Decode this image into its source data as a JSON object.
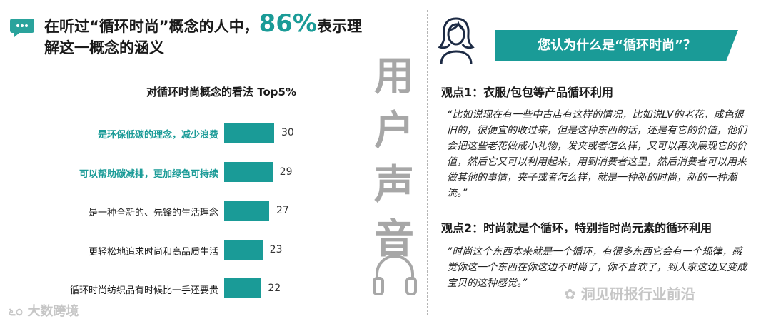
{
  "headline": {
    "prefix": "在听过“循环时尚”概念的人中，",
    "highlight": "86%",
    "suffix": "表示理解这一概念的涵义"
  },
  "chart_data": {
    "type": "bar",
    "title": "对循环时尚概念的看法 Top5%",
    "categories": [
      "是环保低碳的理念，减少浪费",
      "可以帮助碳减排，更加绿色可持续",
      "是一种全新的、先锋的生活理念",
      "更轻松地追求时尚和高品质生活",
      "循环时尚纺织品有时候比一手还要贵"
    ],
    "values": [
      30,
      29,
      27,
      23,
      22
    ],
    "highlighted": [
      true,
      true,
      false,
      false,
      false
    ],
    "xlim": [
      0,
      30
    ],
    "bar_color": "#1a9b97"
  },
  "vertical_title": [
    "用",
    "户",
    "声",
    "音"
  ],
  "question": "您认为什么是“循环时尚”？",
  "points": [
    {
      "title": "观点1：衣服/包包等产品循环利用",
      "quote": "“比如说现在有一些中古店有这样的情况，比如说LV的老花，成色很旧的，很便宜的收过来，但是这种东西的话，还是有它的价值，他们会把这些老花做成小礼物，发夹或者怎么样，又可以再次展现它的价值，然后它又可以利用起来，用到消费者这里，然后消费者可以用来做其他的事情，夹子或者怎么样，就是一种新的时尚，新的一种潮流。”"
    },
    {
      "title": "观点2：时尚就是个循环，特别指时尚元素的循环利用",
      "quote": "”时尚这个东西本来就是一个循环，有很多东西它会有一个规律，感觉你这一个东西在你这边不时尚了，你不喜欢了，到人家这边又变成宝贝的这种感觉。”"
    }
  ],
  "watermarks": {
    "left": "大数跨境",
    "right": "洞见研报行业前沿"
  },
  "colors": {
    "accent": "#1a9b97",
    "muted": "#a7a7a7"
  }
}
